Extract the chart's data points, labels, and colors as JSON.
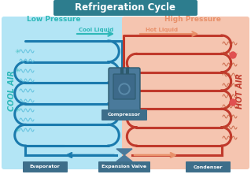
{
  "title": "Refrigeration Cycle",
  "title_bg": "#2d7d8e",
  "title_color": "#ffffff",
  "low_pressure_label": "Low Pressure",
  "high_pressure_label": "High Pressure",
  "low_pressure_color": "#2db8b8",
  "high_pressure_color": "#e8906a",
  "cool_liquid_label": "Cool Liquid",
  "hot_liquid_label": "Hot Liquid",
  "cool_liquid_color": "#2db8b8",
  "hot_liquid_color": "#e8906a",
  "cool_air_label": "COOL AIR",
  "hot_air_label": "HOT AIR",
  "cool_air_color": "#2db8b8",
  "hot_air_color": "#c0392b",
  "left_bg": "#b3e5f5",
  "right_bg": "#f5c5b0",
  "evaporator_coil_color": "#2980b9",
  "condenser_coil_color": "#c0392b",
  "compressor_label": "Compressor",
  "evaporator_label": "Evaporator",
  "expansion_label": "Expansion Valve",
  "condenser_label": "Condenser",
  "label_bg": "#3d6e8a",
  "label_color": "#ffffff",
  "figsize": [
    3.19,
    2.4
  ],
  "dpi": 100
}
